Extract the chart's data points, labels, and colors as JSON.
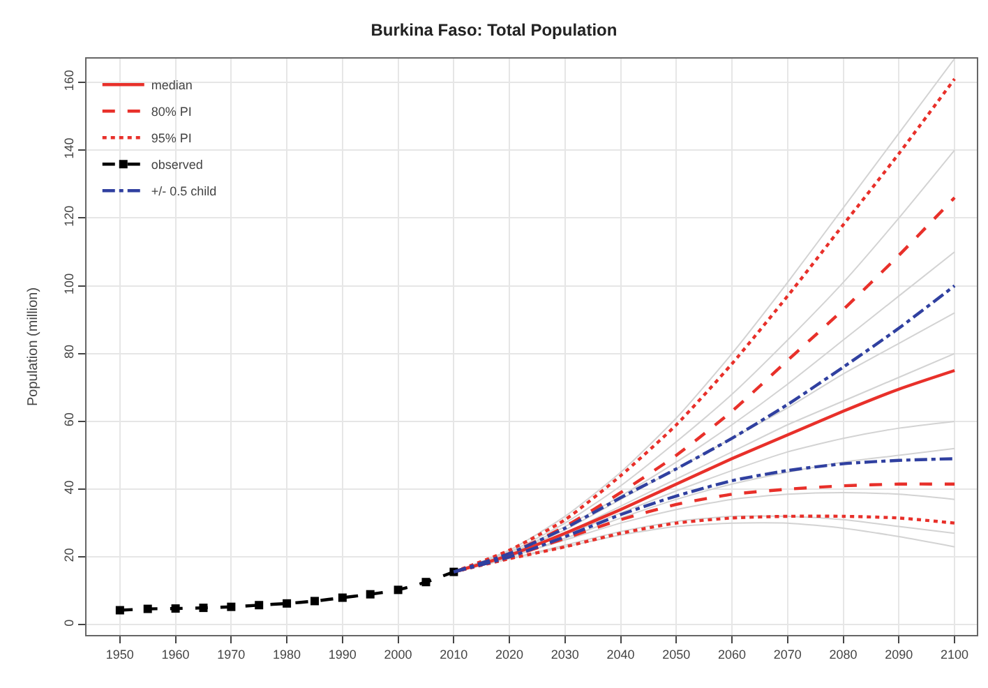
{
  "chart_data": {
    "type": "line",
    "title": "Burkina Faso: Total Population",
    "ylabel": "Population (million)",
    "xlim": [
      1944,
      2104
    ],
    "xticks": [
      1950,
      1960,
      1970,
      1980,
      1990,
      2000,
      2010,
      2020,
      2030,
      2040,
      2050,
      2060,
      2070,
      2080,
      2090,
      2100
    ],
    "ylim": [
      -3,
      167
    ],
    "yticks": [
      0,
      20,
      40,
      60,
      80,
      100,
      120,
      140,
      160
    ],
    "grid": true,
    "legend": "top left",
    "series": [
      {
        "color": "#d3d3d3",
        "x": [
          2010,
          2020,
          2030,
          2040,
          2050,
          2060,
          2070,
          2080,
          2090,
          2100
        ],
        "values": [
          15.6,
          22,
          32,
          45,
          61,
          80,
          101,
          123,
          145,
          167
        ]
      },
      {
        "color": "#d3d3d3",
        "x": [
          2010,
          2020,
          2030,
          2040,
          2050,
          2060,
          2070,
          2080,
          2090,
          2100
        ],
        "values": [
          15.6,
          21.5,
          30,
          41,
          54,
          68,
          84,
          101,
          120,
          140
        ]
      },
      {
        "color": "#d3d3d3",
        "x": [
          2010,
          2020,
          2030,
          2040,
          2050,
          2060,
          2070,
          2080,
          2090,
          2100
        ],
        "values": [
          15.6,
          21,
          29,
          38,
          48,
          59,
          71,
          84,
          97,
          110
        ]
      },
      {
        "color": "#d3d3d3",
        "x": [
          2010,
          2020,
          2030,
          2040,
          2050,
          2060,
          2070,
          2080,
          2090,
          2100
        ],
        "values": [
          15.6,
          21,
          28,
          37,
          46,
          55,
          64,
          74,
          83,
          92
        ]
      },
      {
        "color": "#d3d3d3",
        "x": [
          2010,
          2020,
          2030,
          2040,
          2050,
          2060,
          2070,
          2080,
          2090,
          2100
        ],
        "values": [
          15.6,
          20.5,
          27,
          35,
          43,
          51,
          59,
          66,
          73,
          80
        ]
      },
      {
        "color": "#d3d3d3",
        "x": [
          2010,
          2020,
          2030,
          2040,
          2050,
          2060,
          2070,
          2080,
          2090,
          2100
        ],
        "values": [
          15.6,
          20.5,
          26.5,
          33,
          39.5,
          45.5,
          51,
          55,
          58,
          60
        ]
      },
      {
        "color": "#d3d3d3",
        "x": [
          2010,
          2020,
          2030,
          2040,
          2050,
          2060,
          2070,
          2080,
          2090,
          2100
        ],
        "values": [
          15.6,
          20,
          25.5,
          31.5,
          37,
          41.5,
          45,
          48,
          50,
          52
        ]
      },
      {
        "color": "#d3d3d3",
        "x": [
          2010,
          2020,
          2030,
          2040,
          2050,
          2060,
          2070,
          2080,
          2090,
          2100
        ],
        "values": [
          15.6,
          20,
          25,
          30,
          34,
          37,
          38.5,
          39,
          38.5,
          37
        ]
      },
      {
        "color": "#d3d3d3",
        "x": [
          2010,
          2020,
          2030,
          2040,
          2050,
          2060,
          2070,
          2080,
          2090,
          2100
        ],
        "values": [
          15.6,
          19.5,
          23.5,
          27.5,
          30.5,
          32,
          32,
          31,
          29,
          27
        ]
      },
      {
        "color": "#d3d3d3",
        "x": [
          2010,
          2020,
          2030,
          2040,
          2050,
          2060,
          2070,
          2080,
          2090,
          2100
        ],
        "values": [
          15.6,
          19.5,
          23,
          26.5,
          29,
          30,
          30,
          28.5,
          26,
          23
        ]
      },
      {
        "name": "median",
        "color": "#e8302a",
        "line_style": "solid",
        "x": [
          2010,
          2020,
          2030,
          2040,
          2050,
          2060,
          2070,
          2080,
          2090,
          2100
        ],
        "values": [
          15.6,
          20.5,
          27,
          34,
          41.5,
          49,
          56,
          63,
          69.5,
          75
        ]
      },
      {
        "name": "80% PI",
        "color": "#e8302a",
        "line_style": "dashed",
        "x": [
          2010,
          2020,
          2030,
          2040,
          2050,
          2060,
          2070,
          2080,
          2090,
          2100
        ],
        "values": [
          15.6,
          21,
          29,
          39,
          50,
          63,
          78,
          93,
          109,
          126
        ]
      },
      {
        "color": "#e8302a",
        "line_style": "dashed",
        "x": [
          2010,
          2020,
          2030,
          2040,
          2050,
          2060,
          2070,
          2080,
          2090,
          2100
        ],
        "values": [
          15.6,
          20,
          25.5,
          31,
          35.5,
          38.5,
          40,
          41,
          41.5,
          41.5
        ]
      },
      {
        "name": "95% PI",
        "color": "#e8302a",
        "line_style": "dotted",
        "x": [
          2010,
          2020,
          2030,
          2040,
          2050,
          2060,
          2070,
          2080,
          2090,
          2100
        ],
        "values": [
          15.6,
          22,
          31,
          44,
          59,
          77,
          97,
          118,
          139,
          161
        ]
      },
      {
        "color": "#e8302a",
        "line_style": "dotted",
        "x": [
          2010,
          2020,
          2030,
          2040,
          2050,
          2060,
          2070,
          2080,
          2090,
          2100
        ],
        "values": [
          15.6,
          19.5,
          23,
          27,
          30,
          31.5,
          32,
          32,
          31.5,
          30
        ]
      },
      {
        "name": "observed",
        "color": "#000000",
        "line_style": "dashed",
        "marker": "square",
        "x": [
          1950,
          1955,
          1960,
          1965,
          1970,
          1975,
          1980,
          1985,
          1990,
          1995,
          2000,
          2005,
          2010
        ],
        "values": [
          4.3,
          4.7,
          4.8,
          5.0,
          5.3,
          5.8,
          6.3,
          7.0,
          8.0,
          9.0,
          10.3,
          12.6,
          15.6
        ]
      },
      {
        "name": "+/- 0.5 child",
        "color": "#3040a0",
        "line_style": "dashdot",
        "x": [
          2010,
          2020,
          2030,
          2040,
          2050,
          2060,
          2070,
          2080,
          2090,
          2100
        ],
        "values": [
          15.6,
          21,
          28.5,
          37.5,
          46,
          55,
          65,
          76,
          87.5,
          100
        ]
      },
      {
        "color": "#3040a0",
        "line_style": "dashdot",
        "x": [
          2010,
          2020,
          2030,
          2040,
          2050,
          2060,
          2070,
          2080,
          2090,
          2100
        ],
        "values": [
          15.6,
          20,
          26,
          32.5,
          38,
          42.5,
          45.5,
          47.5,
          48.5,
          49
        ]
      }
    ]
  }
}
